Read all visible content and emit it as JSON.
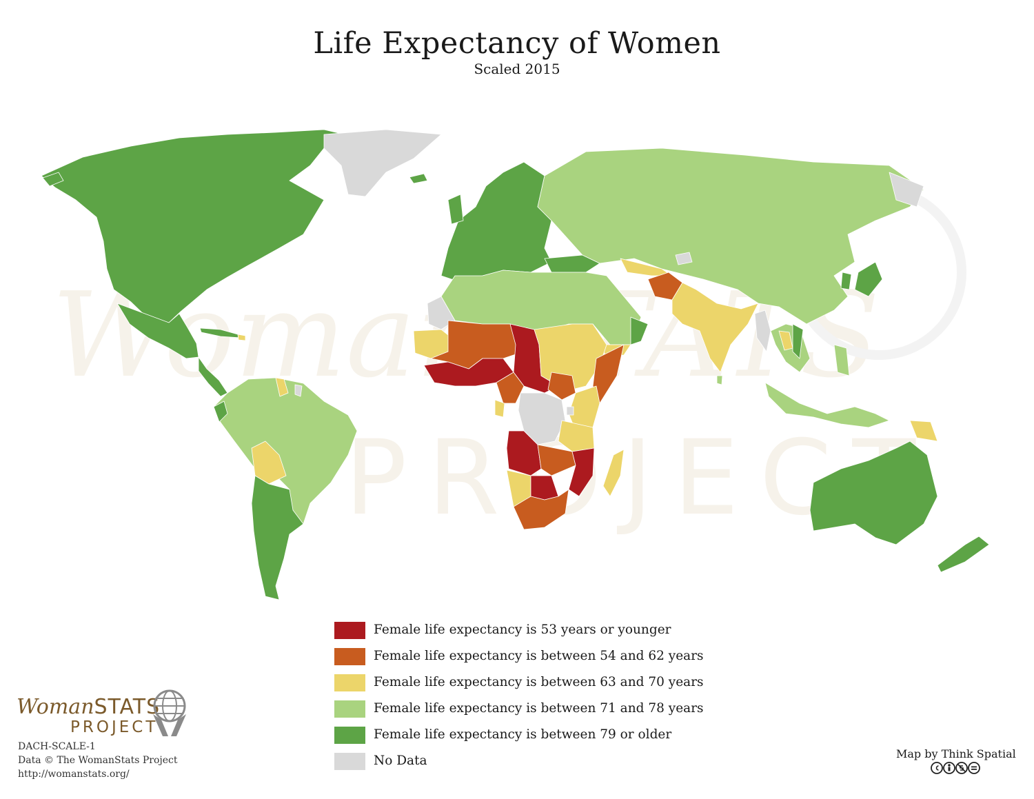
{
  "title": "Life Expectancy of Women",
  "subtitle": "Scaled 2015",
  "watermark": {
    "word1": "WomanSTATS",
    "word2": "PROJECT"
  },
  "legend": [
    {
      "label": "Female life expectancy is 53 years or younger",
      "color": "#ac1a1f"
    },
    {
      "label": "Female life expectancy is between 54 and 62 years",
      "color": "#c85c1f"
    },
    {
      "label": "Female life expectancy is between 63 and 70 years",
      "color": "#ecd56a"
    },
    {
      "label": "Female life expectancy is between 71 and 78 years",
      "color": "#a9d37f"
    },
    {
      "label": "Female life expectancy is between 79 or older",
      "color": "#5da446"
    },
    {
      "label": "No Data",
      "color": "#d9d9d9"
    }
  ],
  "logo": {
    "word1": "Woman",
    "word2": "STATS",
    "sub": "PROJECT"
  },
  "credits": {
    "code": "DACH-SCALE-1",
    "data": "Data © The WomanStats Project",
    "url": "http://womanstats.org/"
  },
  "maker": "Map by Think Spatial"
}
